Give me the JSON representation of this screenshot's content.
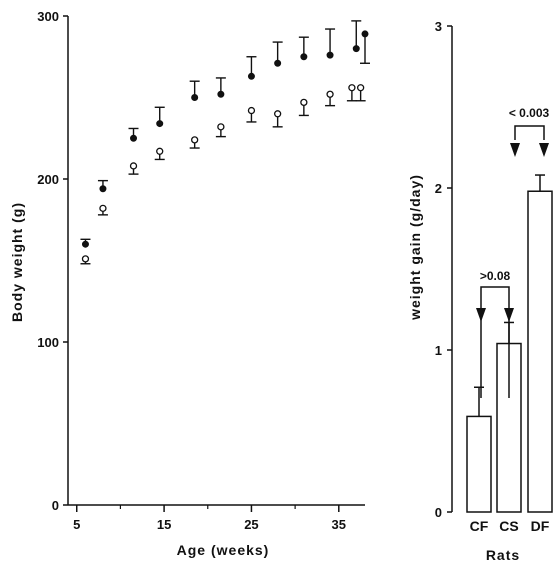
{
  "chart_data": [
    {
      "type": "scatter",
      "xlabel": "Age  (weeks)",
      "ylabel": "Body weight  (g)",
      "xlim": [
        4,
        38
      ],
      "ylim": [
        0,
        300
      ],
      "xticks": [
        "5",
        "15",
        "25",
        "35"
      ],
      "yticks": [
        "0",
        "100",
        "200",
        "300"
      ],
      "series": [
        {
          "marker": "filled",
          "x": [
            6,
            8,
            11.5,
            14.5,
            18.5,
            21.5,
            25,
            28,
            31,
            34,
            37,
            38
          ],
          "y": [
            160,
            194,
            225,
            234,
            250,
            252,
            263,
            271,
            275,
            276,
            280,
            289
          ],
          "err_up": [
            3,
            5,
            6,
            10,
            10,
            10,
            12,
            13,
            12,
            16,
            17,
            0
          ],
          "err_down": [
            0,
            0,
            0,
            0,
            0,
            0,
            0,
            0,
            0,
            0,
            0,
            18
          ]
        },
        {
          "marker": "open",
          "x": [
            6,
            8,
            11.5,
            14.5,
            18.5,
            21.5,
            25,
            28,
            31,
            34,
            36.5,
            37.5
          ],
          "y": [
            151,
            182,
            208,
            217,
            224,
            232,
            242,
            240,
            247,
            252,
            256,
            256
          ],
          "err_up": [
            0,
            0,
            0,
            0,
            0,
            0,
            0,
            0,
            0,
            0,
            0,
            0
          ],
          "err_down": [
            3,
            4,
            5,
            5,
            5,
            6,
            7,
            8,
            8,
            7,
            8,
            8
          ]
        }
      ]
    },
    {
      "type": "bar",
      "xlabel": "Rats",
      "ylabel": "weight   gain  (g/day)",
      "categories": [
        "CF",
        "CS",
        "DF"
      ],
      "values": [
        0.59,
        1.04,
        1.98
      ],
      "err": [
        0.18,
        0.13,
        0.1
      ],
      "ylim": [
        0,
        3
      ],
      "yticks": [
        "0",
        "1",
        "2",
        "3"
      ],
      "annotations": [
        ">0.08",
        "< 0.003"
      ]
    }
  ]
}
